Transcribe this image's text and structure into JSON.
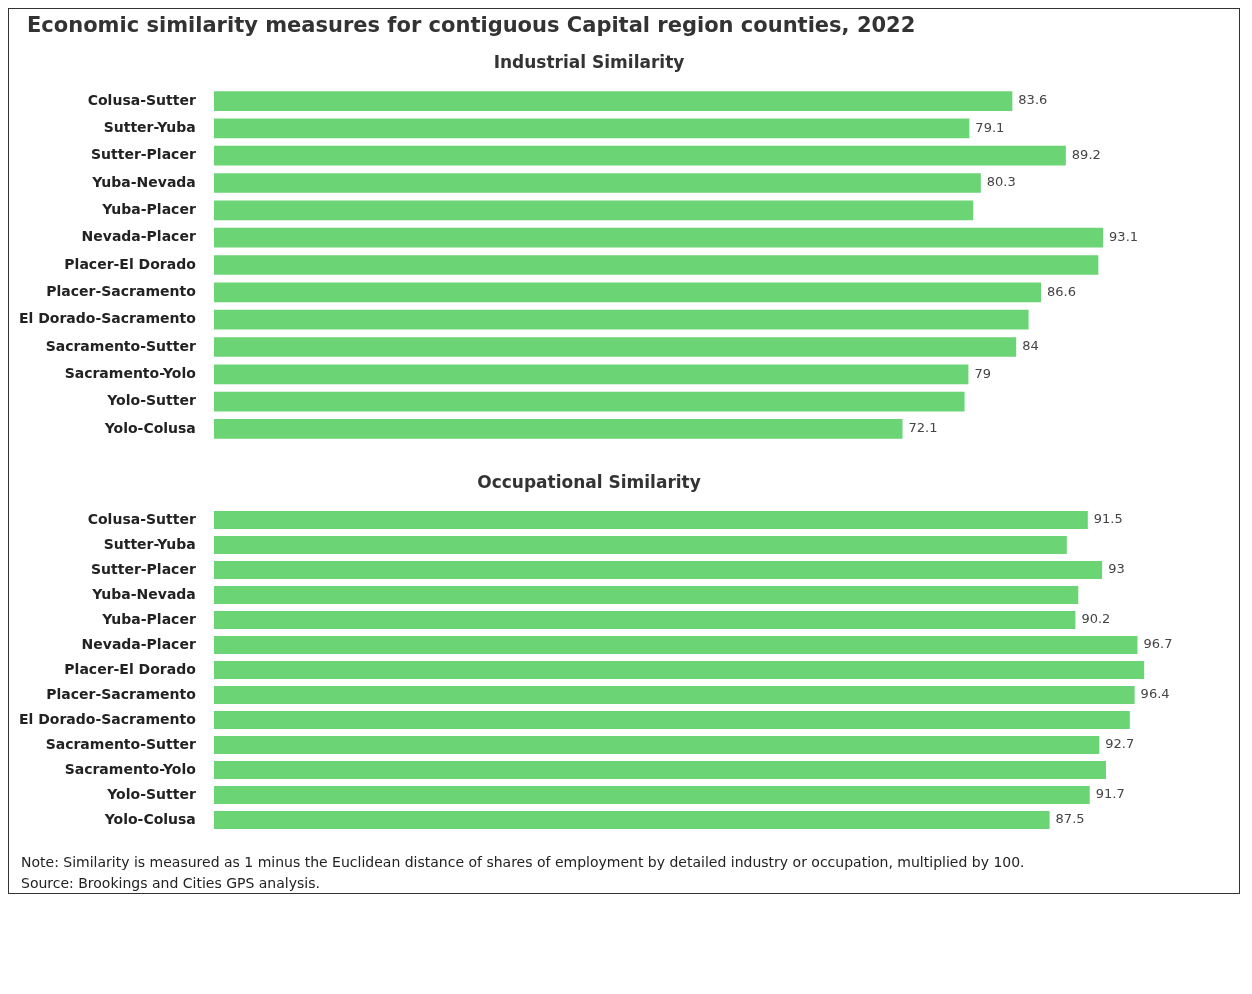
{
  "chart_data": [
    {
      "type": "bar",
      "orientation": "horizontal",
      "title": "Economic similarity measures for contiguous Capital region counties, 2022",
      "subtitle": "Industrial Similarity",
      "categories": [
        "Colusa-Sutter",
        "Sutter-Yuba",
        "Sutter-Placer",
        "Yuba-Nevada",
        "Yuba-Placer",
        "Nevada-Placer",
        "Placer-El Dorado",
        "Placer-Sacramento",
        "El Dorado-Sacramento",
        "Sacramento-Sutter",
        "Sacramento-Yolo",
        "Yolo-Sutter",
        "Yolo-Colusa"
      ],
      "values": [
        83.6,
        79.1,
        89.2,
        80.3,
        79.5,
        93.1,
        92.6,
        86.6,
        85.3,
        84,
        79,
        78.6,
        72.1
      ],
      "value_labels": [
        "83.6",
        "79.1",
        "89.2",
        "80.3",
        null,
        "93.1",
        null,
        "86.6",
        null,
        "84",
        "79",
        null,
        "72.1"
      ],
      "color": "#6bd475",
      "tick_labels": "y"
    },
    {
      "type": "bar",
      "orientation": "horizontal",
      "title": "Occupational Similarity",
      "categories": [
        "Colusa-Sutter",
        "Sutter-Yuba",
        "Sutter-Placer",
        "Yuba-Nevada",
        "Yuba-Placer",
        "Nevada-Placer",
        "Placer-El Dorado",
        "Placer-Sacramento",
        "El Dorado-Sacramento",
        "Sacramento-Sutter",
        "Sacramento-Yolo",
        "Yolo-Sutter",
        "Yolo-Colusa"
      ],
      "values": [
        91.5,
        89.3,
        93,
        90.5,
        90.2,
        96.7,
        97.4,
        96.4,
        95.9,
        92.7,
        93.4,
        91.7,
        87.5
      ],
      "value_labels": [
        "91.5",
        null,
        "93",
        null,
        "90.2",
        "96.7",
        null,
        "96.4",
        null,
        "92.7",
        null,
        "91.7",
        "87.5"
      ],
      "color": "#6bd475",
      "tick_labels": "y",
      "annotations": [
        "Note: Similarity is measured as 1 minus the Euclidean distance of shares of employment by detailed industry or occupation, multiplied by 100.",
        "Source: Brookings and Cities GPS analysis."
      ]
    }
  ]
}
